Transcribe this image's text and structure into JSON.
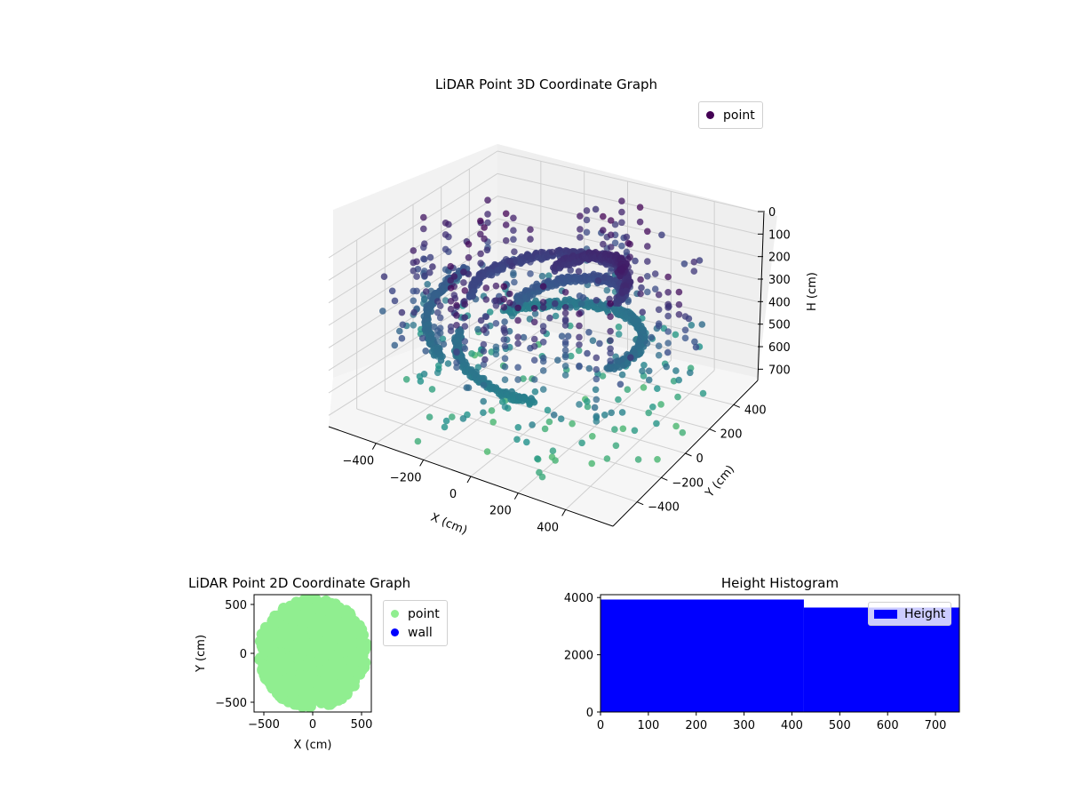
{
  "chart_data": [
    {
      "type": "scatter",
      "projection": "3d",
      "title": "LiDAR Point 3D Coordinate Graph",
      "xlabel": "X (cm)",
      "ylabel": "Y (cm)",
      "zlabel": "H (cm)",
      "x_ticks": [
        -400,
        -200,
        0,
        200,
        400
      ],
      "y_ticks": [
        -400,
        -200,
        0,
        200,
        400
      ],
      "z_ticks": [
        0,
        100,
        200,
        300,
        400,
        500,
        600,
        700
      ],
      "xlim": [
        -600,
        600
      ],
      "ylim": [
        -600,
        600
      ],
      "zlim": [
        750,
        0
      ],
      "z_axis_inverted": true,
      "colormap": "viridis (colored by height)",
      "legend": [
        "point"
      ],
      "legend_position": "top-right",
      "legend_color": "#440154",
      "grid": true
    },
    {
      "type": "scatter",
      "title": "LiDAR Point 2D Coordinate Graph",
      "xlabel": "X (cm)",
      "ylabel": "Y (cm)",
      "x_ticks": [
        -500,
        0,
        500
      ],
      "y_ticks": [
        -500,
        0,
        500
      ],
      "xlim": [
        -600,
        600
      ],
      "ylim": [
        -600,
        600
      ],
      "series": [
        {
          "name": "point",
          "color": "#90ee90"
        },
        {
          "name": "wall",
          "color": "#0000ff"
        }
      ],
      "legend_position": "outside-right"
    },
    {
      "type": "bar",
      "title": "Height Histogram",
      "x_ticks": [
        0,
        100,
        200,
        300,
        400,
        500,
        600,
        700
      ],
      "y_ticks": [
        0,
        2000,
        4000
      ],
      "xlim": [
        0,
        750
      ],
      "ylim": [
        0,
        4100
      ],
      "bins": [
        {
          "start": 0,
          "end": 425,
          "count": 3930
        },
        {
          "start": 425,
          "end": 750,
          "count": 3650
        }
      ],
      "series": [
        {
          "name": "Height",
          "color": "#0000ff"
        }
      ],
      "legend_position": "top-right"
    }
  ]
}
